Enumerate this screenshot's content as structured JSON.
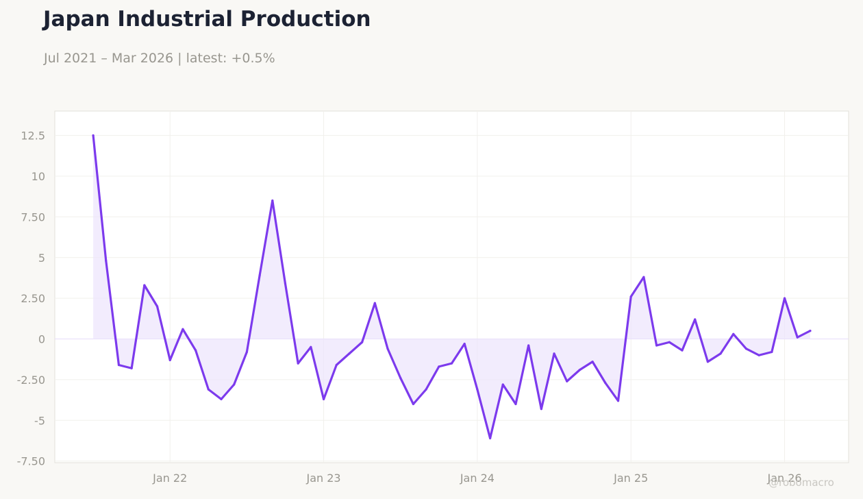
{
  "header": {
    "title": "Japan Industrial Production",
    "subtitle": "Jul 2021 – Mar 2026 | latest: +0.5%"
  },
  "watermark": "@robomacro",
  "colors": {
    "line": "#7c3aed",
    "fill": "#ede4fc",
    "panel": "#ffffff",
    "background": "#f9f8f5"
  },
  "chart_data": {
    "type": "area",
    "title": "Japan Industrial Production",
    "subtitle": "Jul 2021 – Mar 2026 | latest: +0.5%",
    "xlabel": "",
    "ylabel": "",
    "x_start": "2021-07",
    "frequency": "monthly",
    "x_ticks": [
      {
        "label": "Jan 22",
        "date": "2022-01"
      },
      {
        "label": "Jan 23",
        "date": "2023-01"
      },
      {
        "label": "Jan 24",
        "date": "2024-01"
      },
      {
        "label": "Jan 25",
        "date": "2025-01"
      },
      {
        "label": "Jan 26",
        "date": "2026-01"
      }
    ],
    "y_ticks": [
      {
        "value": 12.5,
        "label": "12.5"
      },
      {
        "value": 10,
        "label": "10"
      },
      {
        "value": 7.5,
        "label": "7.50"
      },
      {
        "value": 5,
        "label": "5"
      },
      {
        "value": 2.5,
        "label": "2.50"
      },
      {
        "value": 0,
        "label": "0"
      },
      {
        "value": -2.5,
        "label": "-2.50"
      },
      {
        "value": -5,
        "label": "-5"
      },
      {
        "value": -7.5,
        "label": "-7.50"
      }
    ],
    "ylim": [
      -7.6,
      14
    ],
    "xlim": [
      "2021-04",
      "2026-06"
    ],
    "grid": true,
    "legend": "none",
    "series": [
      {
        "values": [
          12.5,
          4.8,
          -1.6,
          -1.8,
          3.3,
          2.0,
          -1.3,
          0.6,
          -0.7,
          -3.1,
          -3.7,
          -2.8,
          -0.8,
          3.9,
          8.5,
          3.4,
          -1.5,
          -0.5,
          -3.7,
          -1.6,
          -0.9,
          -0.2,
          2.2,
          -0.6,
          -2.4,
          -4.0,
          -3.1,
          -1.7,
          -1.5,
          -0.3,
          -3.1,
          -6.1,
          -2.8,
          -4.0,
          -0.4,
          -4.3,
          -0.9,
          -2.6,
          -1.9,
          -1.4,
          -2.7,
          -3.8,
          2.6,
          3.8,
          -0.4,
          -0.2,
          -0.7,
          1.2,
          -1.4,
          -0.9,
          0.3,
          -0.6,
          -1.0,
          -0.8,
          2.5,
          0.1,
          0.5
        ]
      }
    ]
  }
}
